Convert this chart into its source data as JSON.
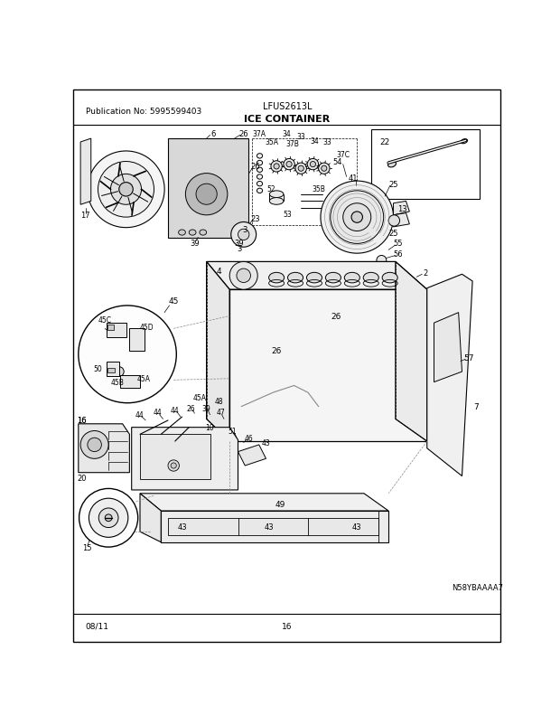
{
  "pub_no": "Publication No: 5995599403",
  "model": "LFUS2613L",
  "section_title": "ICE CONTAINER",
  "date": "08/11",
  "page": "16",
  "diagram_id": "N58YBAAAA7",
  "bg": "#ffffff",
  "lc": "#000000",
  "tc": "#000000",
  "fig_width": 6.2,
  "fig_height": 8.03,
  "dpi": 100
}
